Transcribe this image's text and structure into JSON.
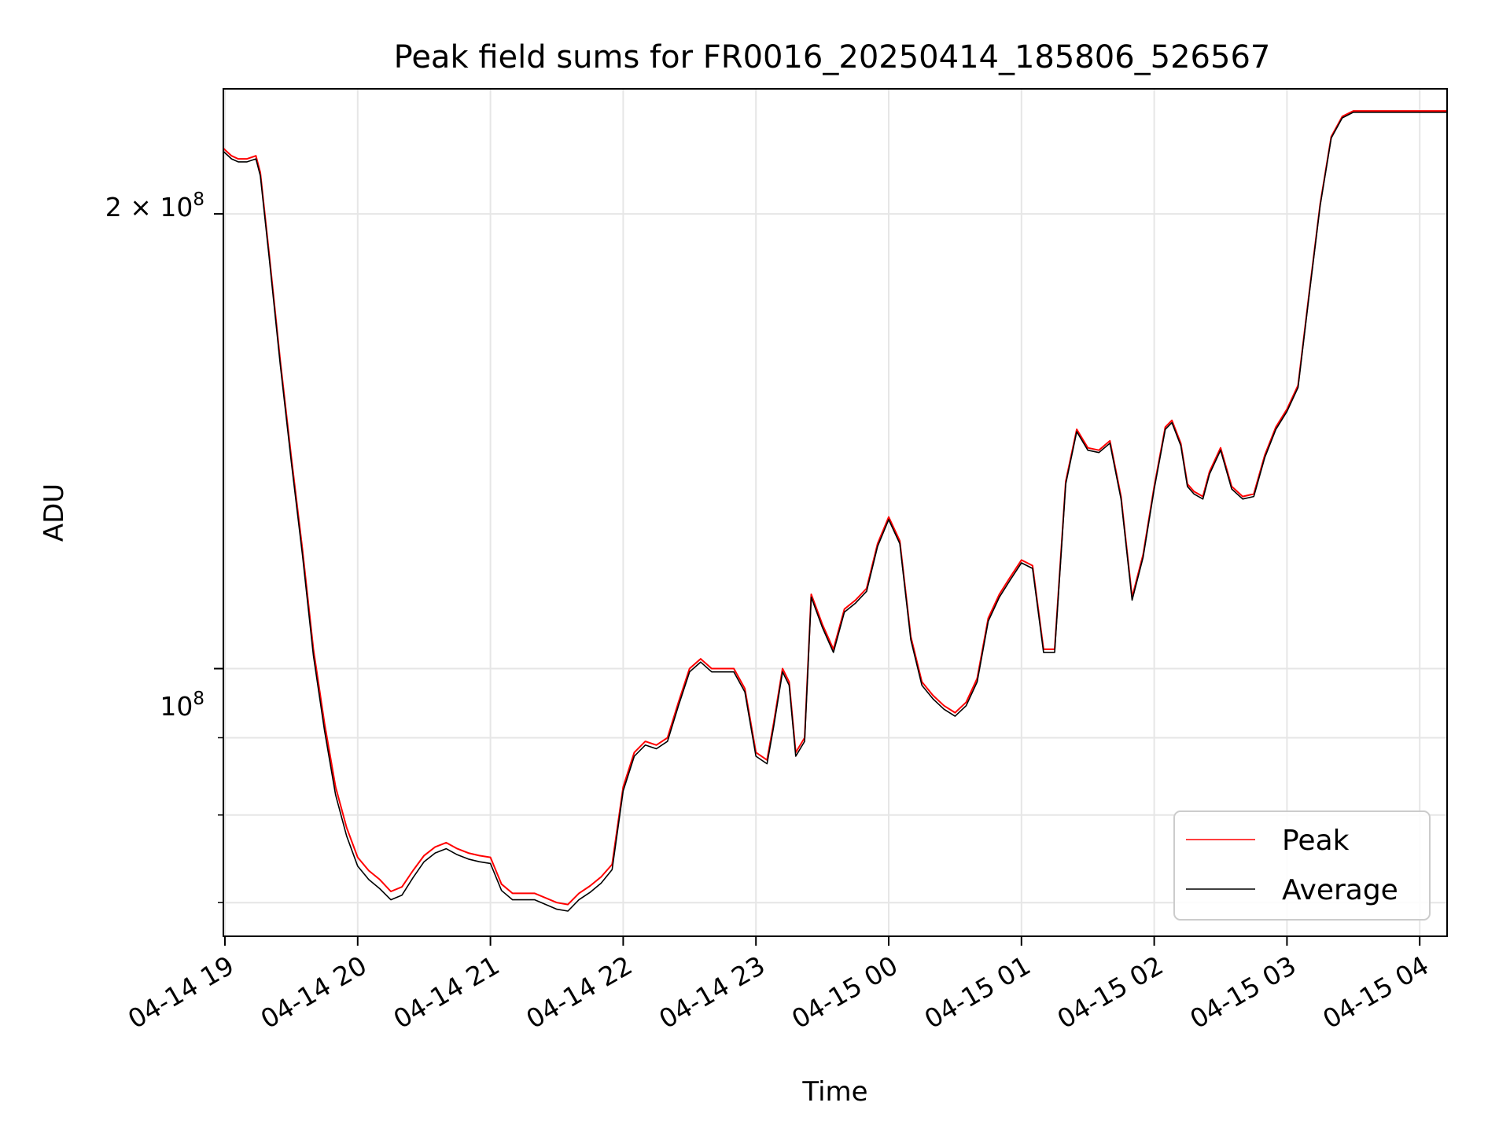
{
  "chart_data": {
    "type": "line",
    "title": "Peak field sums for FR0016_20250414_185806_526567",
    "xlabel": "Time",
    "ylabel": "ADU",
    "x_unit": "hours since 2025-04-14 19:00",
    "xlim": [
      "04-14 18:58",
      "04-15 04:13"
    ],
    "xticks": [
      "04-14 19",
      "04-14 20",
      "04-14 21",
      "04-14 22",
      "04-14 23",
      "04-15 00",
      "04-15 01",
      "04-15 02",
      "04-15 03",
      "04-15 04"
    ],
    "yscale": "log",
    "ylim": [
      66500000,
      242000000
    ],
    "ytick_labels": {
      "major_2e8": "2",
      "major_1e8": "10"
    },
    "grid": true,
    "legend": {
      "placement": "lower-right"
    },
    "series": [
      {
        "name": "Peak",
        "color": "#ff0000",
        "x": [
          "04-14 18:58",
          "04-14 19:00",
          "04-14 19:03",
          "04-14 19:06",
          "04-14 19:10",
          "04-14 19:14",
          "04-14 19:16",
          "04-14 19:20",
          "04-14 19:25",
          "04-14 19:30",
          "04-14 19:35",
          "04-14 19:40",
          "04-14 19:45",
          "04-14 19:50",
          "04-14 19:55",
          "04-14 20:00",
          "04-14 20:05",
          "04-14 20:10",
          "04-14 20:15",
          "04-14 20:20",
          "04-14 20:25",
          "04-14 20:30",
          "04-14 20:35",
          "04-14 20:40",
          "04-14 20:45",
          "04-14 20:50",
          "04-14 20:55",
          "04-14 21:00",
          "04-14 21:05",
          "04-14 21:10",
          "04-14 21:20",
          "04-14 21:30",
          "04-14 21:35",
          "04-14 21:40",
          "04-14 21:45",
          "04-14 21:50",
          "04-14 21:55",
          "04-14 22:00",
          "04-14 22:05",
          "04-14 22:10",
          "04-14 22:15",
          "04-14 22:20",
          "04-14 22:25",
          "04-14 22:30",
          "04-14 22:35",
          "04-14 22:40",
          "04-14 22:45",
          "04-14 22:50",
          "04-14 22:55",
          "04-14 23:00",
          "04-14 23:05",
          "04-14 23:08",
          "04-14 23:12",
          "04-14 23:15",
          "04-14 23:18",
          "04-14 23:22",
          "04-14 23:25",
          "04-14 23:30",
          "04-14 23:35",
          "04-14 23:40",
          "04-14 23:45",
          "04-14 23:50",
          "04-14 23:55",
          "04-15 00:00",
          "04-15 00:05",
          "04-15 00:10",
          "04-15 00:15",
          "04-15 00:20",
          "04-15 00:25",
          "04-15 00:30",
          "04-15 00:35",
          "04-15 00:40",
          "04-15 00:45",
          "04-15 00:50",
          "04-15 00:55",
          "04-15 01:00",
          "04-15 01:05",
          "04-15 01:10",
          "04-15 01:15",
          "04-15 01:20",
          "04-15 01:25",
          "04-15 01:30",
          "04-15 01:35",
          "04-15 01:40",
          "04-15 01:45",
          "04-15 01:50",
          "04-15 01:55",
          "04-15 02:00",
          "04-15 02:05",
          "04-15 02:08",
          "04-15 02:12",
          "04-15 02:15",
          "04-15 02:18",
          "04-15 02:22",
          "04-15 02:25",
          "04-15 02:30",
          "04-15 02:35",
          "04-15 02:40",
          "04-15 02:45",
          "04-15 02:50",
          "04-15 02:55",
          "04-15 03:00",
          "04-15 03:05",
          "04-15 03:10",
          "04-15 03:15",
          "04-15 03:20",
          "04-15 03:25",
          "04-15 03:30",
          "04-15 03:35",
          "04-15 03:40",
          "04-15 03:45",
          "04-15 03:50",
          "04-15 03:55",
          "04-15 04:00",
          "04-15 04:05",
          "04-15 04:13"
        ],
        "y": [
          222000000,
          220500000,
          218500000,
          217500000,
          217500000,
          218500000,
          213000000,
          188000000,
          160000000,
          138000000,
          120000000,
          103000000,
          92000000,
          83500000,
          78500000,
          75000000,
          73500000,
          72500000,
          71200000,
          71700000,
          73500000,
          75200000,
          76200000,
          76700000,
          76000000,
          75500000,
          75200000,
          75000000,
          72000000,
          71000000,
          71000000,
          70000000,
          69800000,
          71000000,
          71800000,
          72800000,
          74200000,
          83500000,
          88000000,
          89500000,
          89000000,
          90000000,
          95000000,
          100000000,
          101500000,
          100000000,
          100000000,
          100000000,
          97000000,
          88000000,
          87000000,
          92000000,
          100000000,
          98000000,
          88000000,
          90000000,
          112000000,
          107000000,
          103000000,
          109500000,
          111000000,
          113000000,
          121000000,
          126000000,
          121500000,
          105000000,
          98000000,
          96000000,
          94500000,
          93500000,
          95000000,
          98500000,
          108000000,
          112000000,
          115000000,
          118000000,
          117000000,
          103000000,
          103000000,
          133000000,
          144000000,
          140000000,
          139500000,
          141500000,
          130000000,
          111500000,
          119000000,
          132000000,
          144500000,
          146000000,
          141000000,
          132500000,
          131000000,
          130000000,
          135000000,
          140000000,
          132000000,
          130000000,
          130500000,
          138500000,
          144500000,
          148500000,
          154000000,
          177000000,
          203000000,
          225000000,
          232000000,
          234000000,
          234000000,
          234000000,
          234000000,
          234000000,
          234000000,
          234000000,
          234000000,
          234000000
        ]
      },
      {
        "name": "Average",
        "color": "#000000",
        "x": [
          "04-14 18:58",
          "04-14 19:00",
          "04-14 19:03",
          "04-14 19:06",
          "04-14 19:10",
          "04-14 19:14",
          "04-14 19:16",
          "04-14 19:20",
          "04-14 19:25",
          "04-14 19:30",
          "04-14 19:35",
          "04-14 19:40",
          "04-14 19:45",
          "04-14 19:50",
          "04-14 19:55",
          "04-14 20:00",
          "04-14 20:05",
          "04-14 20:10",
          "04-14 20:15",
          "04-14 20:20",
          "04-14 20:25",
          "04-14 20:30",
          "04-14 20:35",
          "04-14 20:40",
          "04-14 20:45",
          "04-14 20:50",
          "04-14 20:55",
          "04-14 21:00",
          "04-14 21:05",
          "04-14 21:10",
          "04-14 21:20",
          "04-14 21:30",
          "04-14 21:35",
          "04-14 21:40",
          "04-14 21:45",
          "04-14 21:50",
          "04-14 21:55",
          "04-14 22:00",
          "04-14 22:05",
          "04-14 22:10",
          "04-14 22:15",
          "04-14 22:20",
          "04-14 22:25",
          "04-14 22:30",
          "04-14 22:35",
          "04-14 22:40",
          "04-14 22:45",
          "04-14 22:50",
          "04-14 22:55",
          "04-14 23:00",
          "04-14 23:05",
          "04-14 23:08",
          "04-14 23:12",
          "04-14 23:15",
          "04-14 23:18",
          "04-14 23:22",
          "04-14 23:25",
          "04-14 23:30",
          "04-14 23:35",
          "04-14 23:40",
          "04-14 23:45",
          "04-14 23:50",
          "04-14 23:55",
          "04-15 00:00",
          "04-15 00:05",
          "04-15 00:10",
          "04-15 00:15",
          "04-15 00:20",
          "04-15 00:25",
          "04-15 00:30",
          "04-15 00:35",
          "04-15 00:40",
          "04-15 00:45",
          "04-15 00:50",
          "04-15 00:55",
          "04-15 01:00",
          "04-15 01:05",
          "04-15 01:10",
          "04-15 01:15",
          "04-15 01:20",
          "04-15 01:25",
          "04-15 01:30",
          "04-15 01:35",
          "04-15 01:40",
          "04-15 01:45",
          "04-15 01:50",
          "04-15 01:55",
          "04-15 02:00",
          "04-15 02:05",
          "04-15 02:08",
          "04-15 02:12",
          "04-15 02:15",
          "04-15 02:18",
          "04-15 02:22",
          "04-15 02:25",
          "04-15 02:30",
          "04-15 02:35",
          "04-15 02:40",
          "04-15 02:45",
          "04-15 02:50",
          "04-15 02:55",
          "04-15 03:00",
          "04-15 03:05",
          "04-15 03:10",
          "04-15 03:15",
          "04-15 03:20",
          "04-15 03:25",
          "04-15 03:30",
          "04-15 03:35",
          "04-15 03:40",
          "04-15 03:45",
          "04-15 03:50",
          "04-15 03:55",
          "04-15 04:00",
          "04-15 04:05",
          "04-15 04:13"
        ],
        "y": [
          221000000,
          219500000,
          217500000,
          216500000,
          216500000,
          217500000,
          212000000,
          187000000,
          159000000,
          137000000,
          119000000,
          102000000,
          91000000,
          82500000,
          77500000,
          74000000,
          72500000,
          71500000,
          70300000,
          70800000,
          72700000,
          74500000,
          75500000,
          76000000,
          75300000,
          74800000,
          74500000,
          74300000,
          71300000,
          70300000,
          70300000,
          69300000,
          69100000,
          70300000,
          71100000,
          72100000,
          73600000,
          83000000,
          87500000,
          89000000,
          88500000,
          89500000,
          94500000,
          99500000,
          101000000,
          99500000,
          99500000,
          99500000,
          96500000,
          87500000,
          86500000,
          91500000,
          99500000,
          97500000,
          87500000,
          89500000,
          111500000,
          106500000,
          102500000,
          109000000,
          110500000,
          112500000,
          120500000,
          125500000,
          121000000,
          104500000,
          97500000,
          95500000,
          94000000,
          93000000,
          94500000,
          98000000,
          107500000,
          111500000,
          114500000,
          117500000,
          116500000,
          102500000,
          102500000,
          132500000,
          143500000,
          139500000,
          139000000,
          141000000,
          129500000,
          111000000,
          118500000,
          131500000,
          144000000,
          145500000,
          140500000,
          132000000,
          130500000,
          129500000,
          134500000,
          139500000,
          131500000,
          129500000,
          130000000,
          138000000,
          144000000,
          148000000,
          153500000,
          176500000,
          202500000,
          224500000,
          231500000,
          233500000,
          233500000,
          233500000,
          233500000,
          233500000,
          233500000,
          233500000,
          233500000,
          233500000
        ]
      }
    ]
  }
}
